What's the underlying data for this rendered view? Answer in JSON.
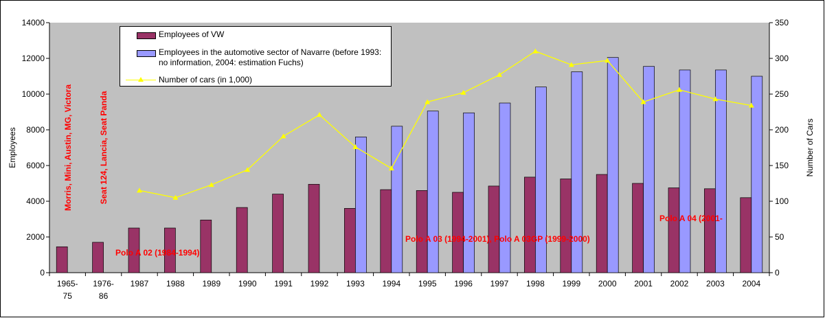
{
  "chart_data": {
    "type": "bar",
    "y_label": "Employees",
    "y2_label": "Number of Cars",
    "categories": [
      "1965-75",
      "1976-86",
      "1987",
      "1988",
      "1989",
      "1990",
      "1991",
      "1992",
      "1993",
      "1994",
      "1995",
      "1996",
      "1997",
      "1998",
      "1999",
      "2000",
      "2001",
      "2002",
      "2003",
      "2004"
    ],
    "series": [
      {
        "name": "Employees of VW",
        "color": "#993366",
        "type": "bar",
        "values": [
          1450,
          1700,
          2500,
          2500,
          2950,
          3650,
          4400,
          4950,
          3600,
          4650,
          4600,
          4500,
          4850,
          5350,
          5250,
          5500,
          5000,
          4750,
          4700,
          4200
        ]
      },
      {
        "name": "Employees in the automotive sector of Navarre (before 1993: no information, 2004: estimation Fuchs)",
        "color": "#9999ff",
        "type": "bar",
        "values": [
          null,
          null,
          null,
          null,
          null,
          null,
          null,
          null,
          7600,
          8200,
          9050,
          8950,
          9500,
          10400,
          11250,
          12050,
          11550,
          11350,
          11350,
          11000
        ]
      },
      {
        "name": "Number of cars (in 1,000)",
        "color": "#ffff00",
        "type": "line",
        "axis": "y2",
        "values": [
          null,
          null,
          115,
          105,
          123,
          144,
          191,
          221,
          176,
          146,
          239,
          252,
          277,
          310,
          291,
          297,
          239,
          256,
          243,
          234
        ]
      }
    ],
    "ylim": [
      0,
      14000
    ],
    "yticks": [
      0,
      2000,
      4000,
      6000,
      8000,
      10000,
      12000,
      14000
    ],
    "y2lim": [
      0,
      350
    ],
    "y2ticks": [
      0,
      50,
      100,
      150,
      200,
      250,
      300,
      350
    ],
    "annotations": [
      "Morris, Mini, Austin, MG, Victora",
      "Seat 124, Lancia, Seat Panda",
      "Polo A 02 (1984-1994)",
      "Polo A 03 (1994-2001), Polo A 03GP (1999-2000)",
      "Polo A 04 (2001-"
    ]
  }
}
